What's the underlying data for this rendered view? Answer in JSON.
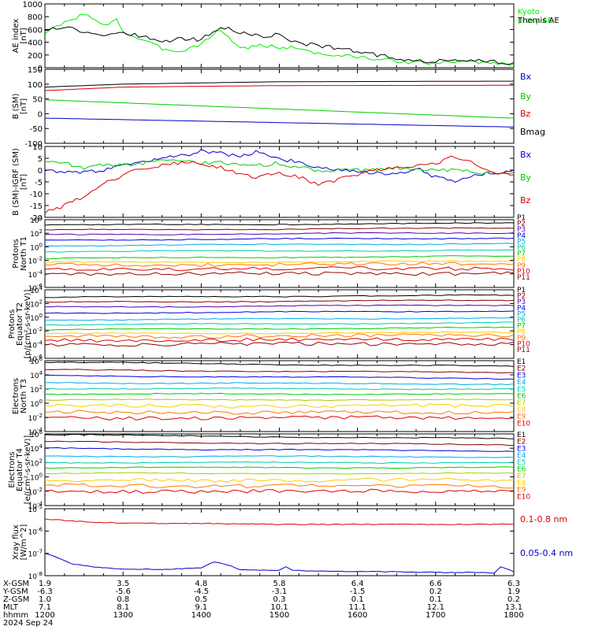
{
  "chart_data": [
    {
      "type": "line",
      "panel": "ae",
      "ylabel": [
        "AE index",
        "[nT]"
      ],
      "ylim": [
        0,
        1000
      ],
      "yticks": [
        "0",
        "200",
        "400",
        "600",
        "800",
        "1000"
      ],
      "ytick_values": [
        0,
        200,
        400,
        600,
        800,
        1000
      ],
      "grid": false,
      "series": [
        {
          "name": "Kyoto proxy AE",
          "label_lines": [
            "Kyoto",
            "proxy AE"
          ],
          "color": "#00ee00",
          "x": [
            1200,
            1215,
            1230,
            1245,
            1255,
            1300,
            1315,
            1330,
            1345,
            1400,
            1415,
            1430,
            1445,
            1500,
            1515,
            1530,
            1545,
            1600,
            1615,
            1630,
            1645,
            1700,
            1715,
            1730,
            1745,
            1800
          ],
          "y": [
            550,
            700,
            850,
            650,
            780,
            560,
            430,
            300,
            260,
            380,
            600,
            300,
            350,
            320,
            310,
            220,
            190,
            170,
            130,
            110,
            80,
            70,
            90,
            100,
            70,
            60
          ]
        },
        {
          "name": "Themis AE",
          "label_lines": [
            "Themis AE"
          ],
          "color": "#000000",
          "x": [
            1200,
            1215,
            1230,
            1245,
            1300,
            1315,
            1330,
            1345,
            1400,
            1415,
            1430,
            1445,
            1500,
            1515,
            1530,
            1545,
            1600,
            1615,
            1630,
            1645,
            1700,
            1715,
            1730,
            1745,
            1800
          ],
          "y": [
            600,
            650,
            560,
            520,
            560,
            480,
            420,
            450,
            440,
            650,
            560,
            490,
            520,
            380,
            350,
            300,
            250,
            200,
            150,
            110,
            100,
            120,
            110,
            90,
            80
          ]
        }
      ]
    },
    {
      "type": "line",
      "panel": "bsm",
      "ylabel": [
        "B (SM)",
        "[nT]"
      ],
      "ylim": [
        -100,
        150
      ],
      "yticks": [
        "-100",
        "-50",
        "0",
        "50",
        "100",
        "150"
      ],
      "ytick_values": [
        -100,
        -50,
        0,
        50,
        100,
        150
      ],
      "grid": false,
      "series": [
        {
          "name": "Bx",
          "color": "#0000cc",
          "x": [
            1200,
            1800
          ],
          "y": [
            -15,
            -45
          ]
        },
        {
          "name": "By",
          "color": "#00cc00",
          "x": [
            1200,
            1800
          ],
          "y": [
            47,
            -15
          ]
        },
        {
          "name": "Bz",
          "color": "#dd0000",
          "x": [
            1200,
            1300,
            1500,
            1800
          ],
          "y": [
            78,
            90,
            95,
            96
          ]
        },
        {
          "name": "Bmag",
          "color": "#000000",
          "x": [
            1200,
            1300,
            1500,
            1800
          ],
          "y": [
            90,
            100,
            108,
            110
          ]
        }
      ]
    },
    {
      "type": "line",
      "panel": "bigrf",
      "ylabel": [
        "B (SM)-IGRF (SM)",
        "[nT]"
      ],
      "ylim": [
        -20,
        10
      ],
      "yticks": [
        "-20",
        "-15",
        "-10",
        "-5",
        "0",
        "5",
        "10"
      ],
      "ytick_values": [
        -20,
        -15,
        -10,
        -5,
        0,
        5,
        10
      ],
      "grid": false,
      "series": [
        {
          "name": "Bx",
          "color": "#0000cc",
          "x": [
            1200,
            1215,
            1230,
            1245,
            1300,
            1315,
            1330,
            1345,
            1400,
            1415,
            1430,
            1445,
            1500,
            1515,
            1530,
            1545,
            1600,
            1615,
            1630,
            1645,
            1700,
            1715,
            1730,
            1745,
            1800
          ],
          "y": [
            0,
            -1,
            -1,
            0,
            2,
            3,
            5,
            6,
            8,
            7,
            6,
            8,
            5,
            3,
            1,
            0,
            -1,
            -1,
            -2,
            1,
            -3,
            -5,
            -2,
            -1,
            0
          ]
        },
        {
          "name": "By",
          "color": "#00cc00",
          "x": [
            1200,
            1215,
            1230,
            1245,
            1300,
            1315,
            1330,
            1345,
            1400,
            1415,
            1430,
            1445,
            1500,
            1515,
            1530,
            1545,
            1600,
            1615,
            1630,
            1645,
            1700,
            1715,
            1730,
            1745,
            1800
          ],
          "y": [
            4,
            3,
            1,
            2,
            2,
            3,
            4,
            4,
            3,
            3,
            2,
            2,
            3,
            1,
            0,
            0,
            0,
            0,
            1,
            0,
            0,
            0,
            -1,
            -1,
            -1
          ]
        },
        {
          "name": "Bz",
          "color": "#dd0000",
          "x": [
            1200,
            1215,
            1230,
            1245,
            1300,
            1315,
            1330,
            1345,
            1400,
            1415,
            1430,
            1445,
            1500,
            1515,
            1530,
            1545,
            1600,
            1615,
            1630,
            1645,
            1700,
            1715,
            1730,
            1745,
            1800
          ],
          "y": [
            -18,
            -15,
            -11,
            -6,
            -2,
            1,
            2,
            3,
            3,
            1,
            -2,
            -3,
            -1,
            -3,
            -6,
            -4,
            -2,
            0,
            1,
            2,
            3,
            6,
            3,
            -1,
            -2
          ]
        }
      ]
    },
    {
      "type": "line",
      "panel": "p_north",
      "yscale": "log",
      "ylabel": [
        "Protons",
        "North T1"
      ],
      "ylim": [
        1e-06,
        10000.0
      ],
      "yticks": [
        "10^-6",
        "10^-4",
        "10^-2",
        "10^0",
        "10^2",
        "10^4"
      ],
      "ytick_values": [
        -6,
        -4,
        -2,
        0,
        2,
        4
      ],
      "grid": false,
      "series": [
        {
          "name": "P1",
          "color": "#000000",
          "y": [
            1600.0,
            3000.0
          ]
        },
        {
          "name": "P2",
          "color": "#880000",
          "y": [
            300.0,
            600.0
          ]
        },
        {
          "name": "P3",
          "color": "#5500aa",
          "y": [
            60.0,
            120.0
          ]
        },
        {
          "name": "P4",
          "color": "#0000dd",
          "y": [
            10.0,
            20.0
          ]
        },
        {
          "name": "P5",
          "color": "#00aaee",
          "y": [
            1.5,
            3
          ]
        },
        {
          "name": "P6",
          "color": "#00ccaa",
          "y": [
            0.2,
            0.3
          ]
        },
        {
          "name": "P7",
          "color": "#00cc00",
          "y": [
            0.02,
            0.04
          ]
        },
        {
          "name": "P8",
          "color": "#ffcc00",
          "y": [
            0.005,
            0.007
          ]
        },
        {
          "name": "P9",
          "color": "#ff7700",
          "y": [
            0.002,
            0.003
          ]
        },
        {
          "name": "P10",
          "color": "#dd0000",
          "y": [
            0.0005,
            0.0007
          ]
        },
        {
          "name": "P11",
          "color": "#990000",
          "y": [
            0.0001,
            0.00012
          ]
        }
      ]
    },
    {
      "type": "line",
      "panel": "p_eq",
      "yscale": "log",
      "ylabel": [
        "Protons",
        "Equator T2",
        "[p/(cm²-s-sr-keV)]"
      ],
      "ylim": [
        1e-06,
        10000.0
      ],
      "yticks": [
        "10^-6",
        "10^-4",
        "10^-2",
        "10^0",
        "10^2",
        "10^4"
      ],
      "ytick_values": [
        -6,
        -4,
        -2,
        0,
        2,
        4
      ],
      "grid": false,
      "series": [
        {
          "name": "P1",
          "color": "#000000",
          "y": [
            800,
            1600
          ]
        },
        {
          "name": "P2",
          "color": "#880000",
          "y": [
            150,
            300
          ]
        },
        {
          "name": "P3",
          "color": "#5500aa",
          "y": [
            30,
            60
          ]
        },
        {
          "name": "P4",
          "color": "#0000dd",
          "y": [
            4,
            8
          ]
        },
        {
          "name": "P5",
          "color": "#00aaee",
          "y": [
            0.4,
            0.8
          ]
        },
        {
          "name": "P6",
          "color": "#00ccaa",
          "y": [
            0.08,
            0.15
          ]
        },
        {
          "name": "P7",
          "color": "#00cc00",
          "y": [
            0.015,
            0.03
          ]
        },
        {
          "name": "P8",
          "color": "#ffcc00",
          "y": [
            0.004,
            0.006
          ]
        },
        {
          "name": "P9",
          "color": "#ff7700",
          "y": [
            0.0015,
            0.0025
          ]
        },
        {
          "name": "P10",
          "color": "#dd0000",
          "y": [
            0.0004,
            0.0006
          ]
        },
        {
          "name": "P11",
          "color": "#990000",
          "y": [
            0.0001,
            0.00015
          ]
        }
      ]
    },
    {
      "type": "line",
      "panel": "e_north",
      "yscale": "log",
      "ylabel": [
        "Electrons",
        "North T3"
      ],
      "ylim": [
        0.0001,
        1000000.0
      ],
      "yticks": [
        "10^-4",
        "10^-2",
        "10^0",
        "10^2",
        "10^4",
        "10^6"
      ],
      "ytick_values": [
        -4,
        -2,
        0,
        2,
        4,
        6
      ],
      "grid": false,
      "series": [
        {
          "name": "E1",
          "color": "#000000",
          "y": [
            600000.0,
            150000.0
          ]
        },
        {
          "name": "E2",
          "color": "#880000",
          "y": [
            50000.0,
            20000.0
          ]
        },
        {
          "name": "E3",
          "color": "#0000dd",
          "y": [
            8000.0,
            3000.0
          ]
        },
        {
          "name": "E4",
          "color": "#00aaee",
          "y": [
            800.0,
            500.0
          ]
        },
        {
          "name": "E5",
          "color": "#00ccaa",
          "y": [
            120.0,
            100.0
          ]
        },
        {
          "name": "E6",
          "color": "#00cc00",
          "y": [
            20,
            20
          ]
        },
        {
          "name": "E7",
          "color": "#aacc00",
          "y": [
            3,
            3
          ]
        },
        {
          "name": "E8",
          "color": "#ffcc00",
          "y": [
            0.4,
            0.4
          ]
        },
        {
          "name": "E9",
          "color": "#ff7700",
          "y": [
            0.05,
            0.05
          ]
        },
        {
          "name": "E10",
          "color": "#dd0000",
          "y": [
            0.008,
            0.01
          ]
        }
      ]
    },
    {
      "type": "line",
      "panel": "e_eq",
      "yscale": "log",
      "ylabel": [
        "Electrons",
        "Equator T4",
        "[e/(cm²-s-sr-keV)]"
      ],
      "ylim": [
        0.0001,
        1000000.0
      ],
      "yticks": [
        "10^-4",
        "10^-2",
        "10^0",
        "10^2",
        "10^4",
        "10^6"
      ],
      "ytick_values": [
        -4,
        -2,
        0,
        2,
        4,
        6
      ],
      "grid": false,
      "series": [
        {
          "name": "E1",
          "color": "#000000",
          "y": [
            800000.0,
            200000.0
          ]
        },
        {
          "name": "E2",
          "color": "#880000",
          "y": [
            80000.0,
            30000.0
          ]
        },
        {
          "name": "E3",
          "color": "#0000dd",
          "y": [
            10000.0,
            4000.0
          ]
        },
        {
          "name": "E4",
          "color": "#00aaee",
          "y": [
            800.0,
            600.0
          ]
        },
        {
          "name": "E5",
          "color": "#00ccaa",
          "y": [
            100.0,
            100.0
          ]
        },
        {
          "name": "E6",
          "color": "#00cc00",
          "y": [
            20,
            20
          ]
        },
        {
          "name": "E7",
          "color": "#aacc00",
          "y": [
            3,
            3
          ]
        },
        {
          "name": "E8",
          "color": "#ffcc00",
          "y": [
            0.3,
            0.4
          ]
        },
        {
          "name": "E9",
          "color": "#ff7700",
          "y": [
            0.06,
            0.05
          ]
        },
        {
          "name": "E10",
          "color": "#dd0000",
          "y": [
            0.01,
            0.01
          ]
        }
      ]
    },
    {
      "type": "line",
      "panel": "xray",
      "yscale": "log",
      "ylabel": [
        "Xray flux",
        "[W/m^2]"
      ],
      "ylim": [
        1e-08,
        1e-05
      ],
      "yticks": [
        "10^-8",
        "10^-7",
        "10^-6",
        "10^-5"
      ],
      "ytick_values": [
        -8,
        -7,
        -6,
        -5
      ],
      "grid": false,
      "series": [
        {
          "name": "0.1-0.8 nm",
          "color": "#dd0000",
          "x": [
            1200,
            1215,
            1230,
            1245,
            1300,
            1330,
            1400,
            1430,
            1500,
            1530,
            1600,
            1630,
            1700,
            1730,
            1800
          ],
          "y": [
            3.5e-06,
            3e-06,
            2.6e-06,
            2.4e-06,
            2.3e-06,
            2.2e-06,
            2.2e-06,
            2.1e-06,
            2e-06,
            2e-06,
            2e-06,
            2e-06,
            2e-06,
            2e-06,
            2e-06
          ]
        },
        {
          "name": "0.05-0.4 nm",
          "color": "#0000cc",
          "x": [
            1200,
            1210,
            1220,
            1235,
            1250,
            1300,
            1330,
            1400,
            1410,
            1420,
            1430,
            1500,
            1505,
            1510,
            1530,
            1600,
            1630,
            1700,
            1730,
            1745,
            1750,
            1800
          ],
          "y": [
            1e-07,
            6e-08,
            3.5e-08,
            2.5e-08,
            2.2e-08,
            2e-08,
            1.9e-08,
            2.2e-08,
            4e-08,
            3e-08,
            1.8e-08,
            1.7e-08,
            2.5e-08,
            1.7e-08,
            1.6e-08,
            1.5e-08,
            1.5e-08,
            1.4e-08,
            1.4e-08,
            1.3e-08,
            2.5e-08,
            1.5e-08
          ]
        }
      ]
    }
  ],
  "x_axis": {
    "range_hhmm": [
      1200,
      1800
    ],
    "tick_values": [
      1200,
      1300,
      1400,
      1500,
      1600,
      1700,
      1800
    ],
    "rows": [
      {
        "label": "X-GSM",
        "values": [
          "1.9",
          "3.5",
          "4.8",
          "5.8",
          "6.4",
          "6.6",
          "6.3"
        ]
      },
      {
        "label": "Y-GSM",
        "values": [
          "-6.3",
          "-5.6",
          "-4.5",
          "-3.1",
          "-1.5",
          "0.2",
          "1.9"
        ]
      },
      {
        "label": "Z-GSM",
        "values": [
          "1.0",
          "0.8",
          "0.5",
          "0.3",
          "0.1",
          "0.1",
          "0.2"
        ]
      },
      {
        "label": "MLT",
        "values": [
          "7.1",
          "8.1",
          "9.1",
          "10.1",
          "11.1",
          "12.1",
          "13.1"
        ]
      },
      {
        "label": "hhmm",
        "values": [
          "1200",
          "1300",
          "1400",
          "1500",
          "1600",
          "1700",
          "1800"
        ]
      }
    ],
    "date": "2024 Sep 24"
  }
}
